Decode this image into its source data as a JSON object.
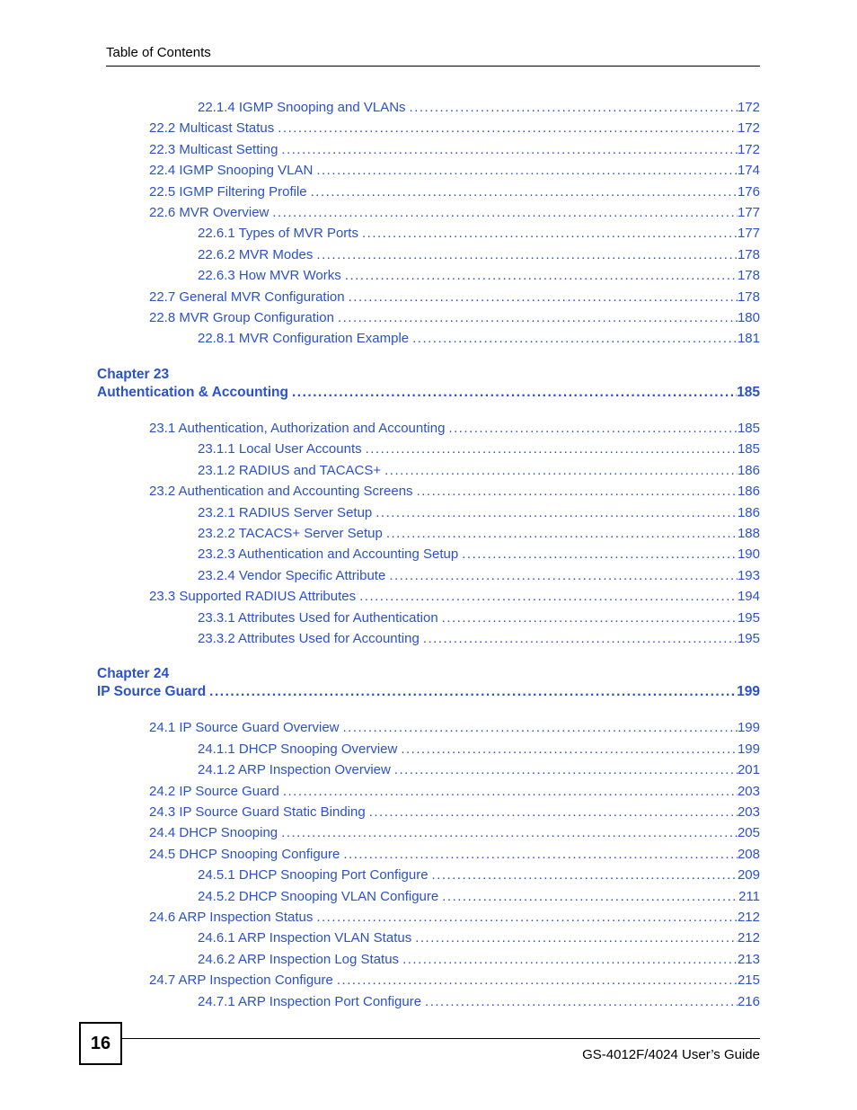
{
  "header": {
    "title": "Table of Contents"
  },
  "footer": {
    "page_number": "16",
    "guide": "GS-4012F/4024 User’s Guide"
  },
  "link_color": "#2b52c6",
  "font_family": "Arial, Helvetica, sans-serif",
  "toc_fontsize_pt": 11,
  "chapter_fontsize_pt": 12,
  "sections": [
    {
      "pre_entries": [
        {
          "indent": 2,
          "label": "22.1.4 IGMP Snooping and VLANs ",
          "page": "172"
        },
        {
          "indent": 1,
          "label": "22.2 Multicast Status  ",
          "page": "172"
        },
        {
          "indent": 1,
          "label": "22.3 Multicast Setting  ",
          "page": "172"
        },
        {
          "indent": 1,
          "label": "22.4 IGMP Snooping VLAN  ",
          "page": "174"
        },
        {
          "indent": 1,
          "label": "22.5 IGMP Filtering Profile  ",
          "page": "176"
        },
        {
          "indent": 1,
          "label": "22.6 MVR Overview  ",
          "page": "177"
        },
        {
          "indent": 2,
          "label": "22.6.1 Types of MVR Ports  ",
          "page": "177"
        },
        {
          "indent": 2,
          "label": "22.6.2 MVR Modes  ",
          "page": "178"
        },
        {
          "indent": 2,
          "label": "22.6.3 How MVR Works  ",
          "page": "178"
        },
        {
          "indent": 1,
          "label": "22.7 General MVR Configuration  ",
          "page": "178"
        },
        {
          "indent": 1,
          "label": "22.8 MVR Group Configuration  ",
          "page": "180"
        },
        {
          "indent": 2,
          "label": "22.8.1 MVR Configuration Example  ",
          "page": "181"
        }
      ]
    },
    {
      "chapter_line1": "Chapter  23",
      "chapter_title": "Authentication & Accounting ",
      "chapter_page": "185",
      "entries": [
        {
          "indent": 1,
          "label": "23.1 Authentication, Authorization and Accounting  ",
          "page": "185"
        },
        {
          "indent": 2,
          "label": "23.1.1 Local User Accounts  ",
          "page": "185"
        },
        {
          "indent": 2,
          "label": "23.1.2 RADIUS and TACACS+  ",
          "page": "186"
        },
        {
          "indent": 1,
          "label": "23.2 Authentication and Accounting Screens  ",
          "page": "186"
        },
        {
          "indent": 2,
          "label": "23.2.1 RADIUS Server Setup   ",
          "page": "186"
        },
        {
          "indent": 2,
          "label": "23.2.2 TACACS+ Server Setup   ",
          "page": "188"
        },
        {
          "indent": 2,
          "label": "23.2.3 Authentication and Accounting Setup   ",
          "page": "190"
        },
        {
          "indent": 2,
          "label": "23.2.4 Vendor Specific Attribute  ",
          "page": "193"
        },
        {
          "indent": 1,
          "label": "23.3 Supported RADIUS Attributes  ",
          "page": "194"
        },
        {
          "indent": 2,
          "label": "23.3.1 Attributes Used for Authentication  ",
          "page": "195"
        },
        {
          "indent": 2,
          "label": "23.3.2 Attributes Used for Accounting  ",
          "page": "195"
        }
      ]
    },
    {
      "chapter_line1": "Chapter  24",
      "chapter_title": "IP Source Guard",
      "chapter_page": "199",
      "entries": [
        {
          "indent": 1,
          "label": "24.1 IP Source Guard Overview  ",
          "page": "199"
        },
        {
          "indent": 2,
          "label": "24.1.1 DHCP Snooping Overview  ",
          "page": "199"
        },
        {
          "indent": 2,
          "label": "24.1.2 ARP Inspection Overview  ",
          "page": "201"
        },
        {
          "indent": 1,
          "label": "24.2 IP Source Guard  ",
          "page": "203"
        },
        {
          "indent": 1,
          "label": "24.3 IP Source Guard Static Binding  ",
          "page": "203"
        },
        {
          "indent": 1,
          "label": "24.4 DHCP Snooping  ",
          "page": "205"
        },
        {
          "indent": 1,
          "label": "24.5 DHCP Snooping Configure  ",
          "page": "208"
        },
        {
          "indent": 2,
          "label": "24.5.1 DHCP Snooping Port Configure  ",
          "page": "209"
        },
        {
          "indent": 2,
          "label": "24.5.2 DHCP Snooping VLAN Configure  ",
          "page": "211"
        },
        {
          "indent": 1,
          "label": "24.6 ARP Inspection Status  ",
          "page": "212"
        },
        {
          "indent": 2,
          "label": "24.6.1 ARP Inspection VLAN Status  ",
          "page": "212"
        },
        {
          "indent": 2,
          "label": "24.6.2 ARP Inspection Log Status  ",
          "page": "213"
        },
        {
          "indent": 1,
          "label": "24.7 ARP Inspection Configure  ",
          "page": "215"
        },
        {
          "indent": 2,
          "label": "24.7.1 ARP Inspection Port Configure  ",
          "page": "216"
        }
      ]
    }
  ]
}
